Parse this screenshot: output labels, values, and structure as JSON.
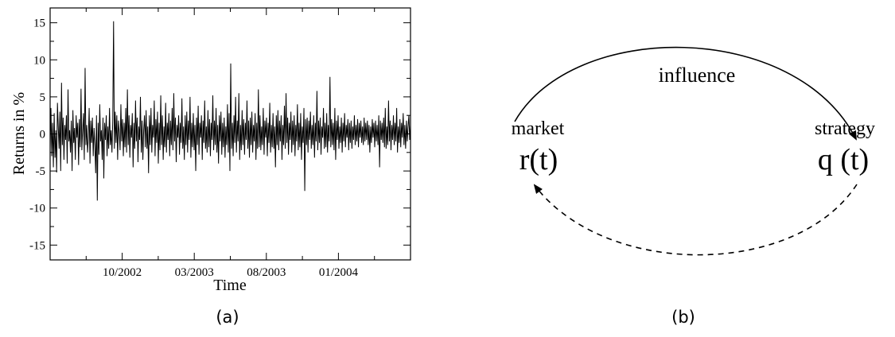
{
  "chart_data": {
    "type": "line",
    "ylabel": "Returns in %",
    "xlabel": "Time",
    "ylim": [
      -17,
      17
    ],
    "yticks": [
      -15,
      -10,
      -5,
      0,
      5,
      10,
      15
    ],
    "xticks": [
      {
        "label": "10/2002",
        "pos": 0.2
      },
      {
        "label": "03/2003",
        "pos": 0.4
      },
      {
        "label": "08/2003",
        "pos": 0.6
      },
      {
        "label": "01/2004",
        "pos": 0.8
      }
    ],
    "grid": false,
    "series": [
      {
        "values": [
          -2.0,
          3.5,
          -3.0,
          1.5,
          -4.5,
          2.8,
          -3.2,
          0.5,
          -5.2,
          4.2,
          1.0,
          -2.0,
          3.0,
          -5.0,
          6.9,
          -1.5,
          2.2,
          -3.5,
          1.2,
          -0.8,
          2.5,
          -4.0,
          6.0,
          -1.0,
          0.5,
          -2.5,
          1.8,
          -5.0,
          3.2,
          -1.2,
          0.8,
          -3.5,
          2.5,
          -0.5,
          1.5,
          -4.2,
          2.0,
          -1.8,
          6.1,
          -2.2,
          0.5,
          2.8,
          -3.5,
          8.9,
          -1.5,
          1.2,
          -2.5,
          -0.5,
          3.5,
          -4.0,
          1.8,
          -1.2,
          2.2,
          -3.0,
          0.8,
          -1.5,
          -5.3,
          2.5,
          -9.0,
          1.5,
          -2.8,
          4.0,
          -1.0,
          0.5,
          -3.5,
          2.2,
          -6.0,
          1.5,
          -0.8,
          2.5,
          -3.0,
          1.0,
          -2.0,
          3.5,
          -1.5,
          0.5,
          -2.5,
          1.8,
          15.2,
          -2.0,
          3.0,
          -1.2,
          2.5,
          -3.5,
          1.8,
          0.2,
          -2.2,
          4.0,
          -1.0,
          2.0,
          -3.0,
          1.5,
          -1.8,
          3.5,
          -2.5,
          6.0,
          -1.5,
          2.5,
          -3.2,
          1.2,
          -0.5,
          2.8,
          -4.5,
          1.5,
          -2.0,
          4.5,
          -1.0,
          2.2,
          -3.8,
          1.0,
          -0.8,
          5.0,
          -2.5,
          1.8,
          -3.5,
          0.5,
          2.5,
          -1.8,
          3.2,
          -2.0,
          1.0,
          -5.3,
          2.5,
          -1.5,
          3.5,
          -2.5,
          1.2,
          -0.5,
          4.5,
          -3.0,
          2.0,
          -1.2,
          3.0,
          -4.0,
          1.5,
          -2.2,
          5.2,
          -1.5,
          2.5,
          -3.5,
          1.0,
          -1.8,
          4.2,
          -2.5,
          1.5,
          -0.8,
          2.8,
          -3.0,
          1.8,
          -1.5,
          3.5,
          -2.2,
          5.5,
          -1.0,
          2.2,
          -3.8,
          1.2,
          -0.5,
          2.5,
          -2.8,
          1.5,
          -1.2,
          4.8,
          -2.0,
          1.0,
          -3.5,
          2.5,
          -1.5,
          3.0,
          -2.5,
          1.8,
          -0.8,
          5.0,
          -3.2,
          1.5,
          -1.8,
          2.8,
          -2.2,
          1.2,
          -5.0,
          2.2,
          -1.5,
          3.8,
          -2.8,
          1.5,
          -0.5,
          2.5,
          -3.5,
          1.8,
          -1.2,
          4.5,
          -2.0,
          1.0,
          -2.5,
          3.2,
          -1.8,
          2.0,
          -3.0,
          1.5,
          -0.8,
          5.2,
          -2.2,
          1.8,
          -1.5,
          3.5,
          -2.5,
          1.2,
          -4.0,
          2.5,
          -1.0,
          3.0,
          -2.8,
          1.5,
          -1.8,
          2.2,
          -3.2,
          1.0,
          -1.5,
          4.0,
          -2.5,
          2.8,
          -5.0,
          9.5,
          -2.0,
          1.5,
          -3.0,
          2.5,
          -1.2,
          5.0,
          -2.5,
          1.8,
          -1.0,
          5.5,
          -3.5,
          1.2,
          -2.2,
          3.2,
          -1.5,
          2.0,
          -2.8,
          1.5,
          -0.8,
          4.5,
          -2.0,
          1.8,
          -3.2,
          2.2,
          -1.5,
          3.0,
          -2.5,
          1.2,
          -1.0,
          2.8,
          -3.5,
          1.5,
          -2.0,
          6.0,
          -1.8,
          2.5,
          -2.2,
          1.0,
          -1.5,
          3.5,
          -2.8,
          1.8,
          -0.5,
          2.2,
          -3.0,
          1.5,
          -1.2,
          4.2,
          -2.5,
          1.2,
          -1.8,
          2.8,
          -2.0,
          1.0,
          -4.5,
          2.5,
          -1.5,
          3.2,
          -2.2,
          1.8,
          -1.0,
          2.5,
          -3.5,
          1.2,
          -1.5,
          3.8,
          -2.0,
          5.5,
          -1.2,
          2.2,
          -2.8,
          1.5,
          -0.8,
          3.0,
          -2.5,
          1.8,
          -1.5,
          2.5,
          -3.0,
          1.2,
          -1.0,
          4.0,
          -2.2,
          1.5,
          -1.8,
          2.8,
          -3.5,
          1.0,
          -1.2,
          3.5,
          -7.7,
          2.0,
          -1.5,
          2.2,
          -2.5,
          1.8,
          -0.8,
          3.0,
          -2.0,
          1.2,
          -1.5,
          2.5,
          -3.2,
          1.5,
          -1.0,
          5.8,
          -2.2,
          1.8,
          -1.2,
          2.2,
          -2.8,
          1.0,
          -0.5,
          3.5,
          -2.0,
          1.5,
          -1.8,
          2.8,
          -2.5,
          1.2,
          -1.0,
          7.7,
          -1.8,
          2.0,
          -1.5,
          1.5,
          -2.2,
          3.5,
          -3.5,
          1.8,
          -0.8,
          2.5,
          -2.0,
          1.0,
          -1.2,
          2.2,
          -2.5,
          1.5,
          -1.0,
          2.8,
          -1.8,
          1.2,
          -0.5,
          2.0,
          -2.2,
          1.5,
          -1.2,
          1.8,
          -2.0,
          1.0,
          -0.8,
          2.5,
          -1.5,
          1.2,
          -1.0,
          2.0,
          -1.8,
          1.5,
          -0.5,
          1.8,
          -1.2,
          1.0,
          -1.5,
          2.2,
          -1.0,
          1.5,
          -0.8,
          1.8,
          -1.5,
          1.2,
          -2.5,
          1.0,
          -1.2,
          2.0,
          -0.5,
          1.5,
          -1.8,
          1.8,
          -1.0,
          1.2,
          -1.5,
          2.5,
          -4.5,
          1.8,
          -0.8,
          1.5,
          -1.2,
          2.2,
          -1.8,
          3.5,
          -2.0,
          1.0,
          -1.5,
          4.5,
          -1.0,
          1.8,
          -2.2,
          1.2,
          -0.8,
          2.5,
          -1.5,
          1.5,
          -1.0,
          3.5,
          -2.5,
          1.0,
          -1.2,
          2.0,
          -1.8,
          1.5,
          -0.5,
          2.8,
          -1.5,
          1.2,
          -2.0,
          1.8,
          -1.0,
          1.0,
          2.5,
          -0.8,
          1.2
        ]
      }
    ]
  },
  "labels": {
    "panel_a": "(a)",
    "panel_b": "(b)"
  },
  "diagram": {
    "left_node": {
      "name": "market",
      "func": "r(t)"
    },
    "right_node": {
      "name": "strategy",
      "func": "q (t)"
    },
    "top_edge": {
      "label": "influence",
      "style": "solid"
    },
    "bottom_edge": {
      "label": "",
      "style": "dashed"
    }
  }
}
